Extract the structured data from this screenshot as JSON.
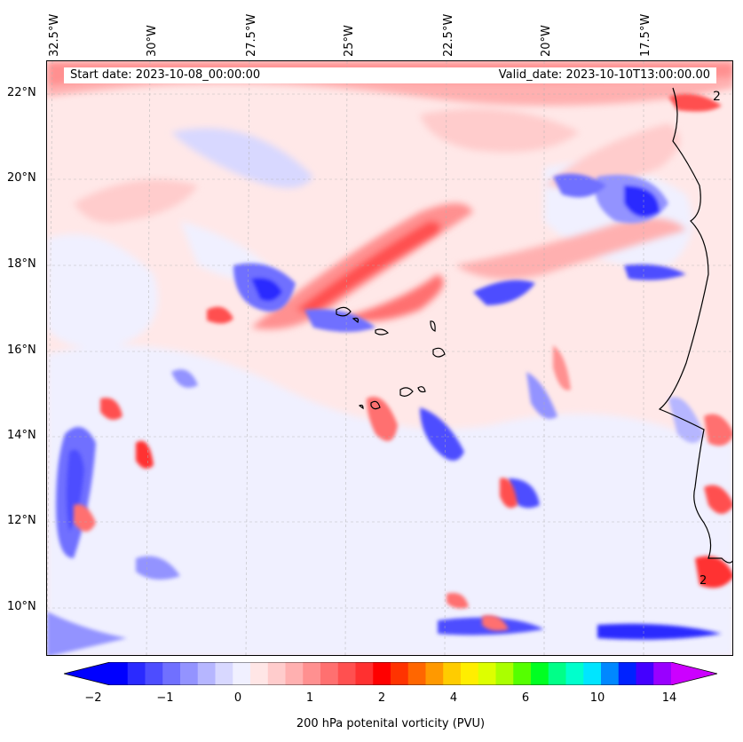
{
  "map": {
    "start_date": "Start date: 2023-10-08_00:00:00",
    "valid_date": "Valid_date: 2023-10-10T13:00:00.00",
    "longitude_labels": [
      "32.5°W",
      "30°W",
      "27.5°W",
      "25°W",
      "22.5°W",
      "20°W",
      "17.5°W"
    ],
    "latitude_labels": [
      "22°N",
      "20°N",
      "18°N",
      "16°N",
      "14°N",
      "12°N",
      "10°N"
    ],
    "contour_labels": [
      "2",
      "2"
    ]
  },
  "colorbar": {
    "label": "200 hPa potenital vorticity (PVU)",
    "tick_labels": [
      "−2",
      "−1",
      "0",
      "1",
      "2",
      "4",
      "6",
      "10",
      "14"
    ],
    "colors": [
      "#0000ff",
      "#2a2aff",
      "#4d4dff",
      "#7070ff",
      "#9393ff",
      "#b6b6ff",
      "#d8d8ff",
      "#f0f0ff",
      "#ffe6e6",
      "#ffcccc",
      "#ffb0b0",
      "#ff9090",
      "#ff7070",
      "#ff5050",
      "#ff3030",
      "#ff0000",
      "#ff3300",
      "#ff6600",
      "#ff9900",
      "#ffcc00",
      "#ffee00",
      "#ddff00",
      "#aaff00",
      "#55ff00",
      "#00ff22",
      "#00ff88",
      "#00ffcc",
      "#00e5ff",
      "#0088ff",
      "#0022ff",
      "#4400ff",
      "#9900ff"
    ],
    "extend_min_color": "#0000ff",
    "extend_max_color": "#cc00ff"
  }
}
